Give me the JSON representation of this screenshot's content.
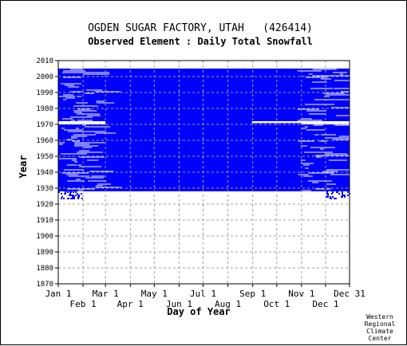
{
  "chart_data": {
    "type": "heatmap",
    "title": "OGDEN SUGAR FACTORY, UTAH   (426414)",
    "subtitle": "Observed Element : Daily Total Snowfall",
    "xlabel": "Day of Year",
    "ylabel": "Year",
    "xlim": [
      1,
      365
    ],
    "ylim": [
      1870,
      2010
    ],
    "x_ticks_upper": [
      {
        "label": "Jan 1",
        "day": 1
      },
      {
        "label": "Mar 1",
        "day": 60
      },
      {
        "label": "May 1",
        "day": 121
      },
      {
        "label": "Jul 1",
        "day": 182
      },
      {
        "label": "Sep 1",
        "day": 244
      },
      {
        "label": "Nov 1",
        "day": 305
      },
      {
        "label": "Dec 31",
        "day": 365
      }
    ],
    "x_ticks_lower": [
      {
        "label": "Feb 1",
        "day": 32
      },
      {
        "label": "Apr 1",
        "day": 91
      },
      {
        "label": "Jun 1",
        "day": 152
      },
      {
        "label": "Aug 1",
        "day": 213
      },
      {
        "label": "Oct 1",
        "day": 274
      },
      {
        "label": "Dec 1",
        "day": 335
      }
    ],
    "y_ticks": [
      1870,
      1880,
      1890,
      1900,
      1910,
      1920,
      1930,
      1940,
      1950,
      1960,
      1970,
      1980,
      1990,
      2000,
      2010
    ],
    "grid": true,
    "colors": {
      "observed": "#0000ff",
      "background": "#ffffff",
      "grid": "#a0a0a0"
    },
    "observed_summary": {
      "full_record_years": [
        1928,
        2004
      ],
      "sparse_years": [
        1923,
        1927
      ],
      "missing_year_blocks": [
        [
          1970,
          1971
        ]
      ],
      "description_segments": [
        {
          "years": [
            1928,
            2004
          ],
          "day_start": 1,
          "day_end": 365
        }
      ]
    }
  },
  "credit": [
    "Western",
    "Regional",
    "Climate",
    "Center"
  ]
}
